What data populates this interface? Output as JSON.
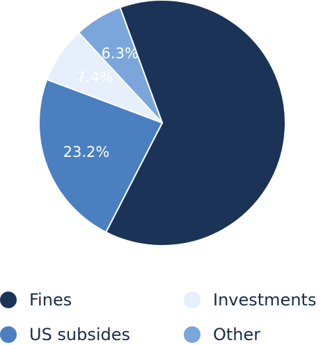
{
  "chart_data": {
    "type": "pie",
    "title": "",
    "slices": [
      {
        "name": "Fines",
        "value": 63.1,
        "label": "",
        "color": "#1a3357"
      },
      {
        "name": "US subsides",
        "value": 23.2,
        "label": "23.2%",
        "color": "#4a7fc0"
      },
      {
        "name": "Investments",
        "value": 7.4,
        "label": "7.4%",
        "color": "#e6effa"
      },
      {
        "name": "Other",
        "value": 6.3,
        "label": "6.3%",
        "color": "#7aa6dc"
      }
    ],
    "legend_position": "bottom"
  }
}
